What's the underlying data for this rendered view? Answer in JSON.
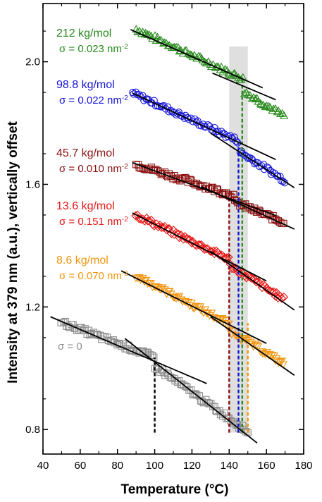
{
  "chart_data": {
    "type": "scatter",
    "xlabel": "Temperature (°C)",
    "ylabel": "Intensity at 379 nm (a.u.), vertically offset",
    "xlim": [
      40,
      180
    ],
    "ylim": [
      0.72,
      2.19
    ],
    "xticks": [
      40,
      60,
      80,
      100,
      120,
      140,
      160,
      180
    ],
    "yticks": [
      0.8,
      1.2,
      1.6,
      2.0
    ],
    "xtick_labels": [
      "40",
      "60",
      "80",
      "100",
      "120",
      "140",
      "160",
      "180"
    ],
    "ytick_labels": [
      "0.8",
      "1.2",
      "1.6",
      "2.0"
    ],
    "shaded_band": {
      "x": [
        140,
        150
      ],
      "color": "#d9d9d9"
    },
    "series": [
      {
        "name": "212 kg/mol",
        "sigma": "σ = 0.023 nm",
        "sigma_exp": "-2",
        "color": "#2a8a1e",
        "marker": "triangle",
        "x_range": [
          90,
          170
        ],
        "segments": [
          [
            [
              89,
              2.108
            ],
            [
              148,
              1.942
            ]
          ],
          [
            [
              132,
              1.962
            ],
            [
              172,
              1.812
            ]
          ]
        ],
        "fits": [
          [
            [
              87,
              2.105
            ],
            [
              158,
              1.915
            ]
          ],
          [
            [
              131,
              1.963
            ],
            [
              165,
              1.876
            ]
          ]
        ],
        "tg": 147
      },
      {
        "name": "98.8 kg/mol",
        "sigma": "σ = 0.022 nm",
        "sigma_exp": "-2",
        "color": "#1414d8",
        "marker": "circle",
        "x_range": [
          88,
          170
        ],
        "segments": [
          [
            [
              88,
              1.898
            ],
            [
              145,
              1.742
            ]
          ],
          [
            [
              135,
              1.748
            ],
            [
              170,
              1.612
            ]
          ]
        ],
        "fits": [
          [
            [
              88,
              1.898
            ],
            [
              165,
              1.681
            ]
          ],
          [
            [
              130,
              1.767
            ],
            [
              175,
              1.589
            ]
          ]
        ],
        "tg": 145
      },
      {
        "name": "45.7 kg/mol",
        "sigma": "σ = 0.010 nm",
        "sigma_exp": "-2",
        "color": "#8b1010",
        "marker": "square",
        "x_range": [
          90,
          170
        ],
        "segments": [
          [
            [
              90,
              1.665
            ],
            [
              143,
              1.562
            ]
          ],
          [
            [
              130,
              1.575
            ],
            [
              170,
              1.474
            ]
          ]
        ],
        "fits": [
          [
            [
              88,
              1.671
            ],
            [
              165,
              1.498
            ]
          ],
          [
            [
              125,
              1.593
            ],
            [
              175,
              1.454
            ]
          ]
        ],
        "tg": 140
      },
      {
        "name": "13.6 kg/mol",
        "sigma": "σ = 0.151 nm",
        "sigma_exp": "-2",
        "color": "#e81414",
        "marker": "diamond",
        "x_range": [
          90,
          170
        ],
        "segments": [
          [
            [
              90,
              1.5
            ],
            [
              140,
              1.356
            ]
          ],
          [
            [
              130,
              1.375
            ],
            [
              170,
              1.222
            ]
          ]
        ],
        "fits": [
          [
            [
              88,
              1.507
            ],
            [
              160,
              1.285
            ]
          ],
          [
            [
              130,
              1.382
            ],
            [
              175,
              1.19
            ]
          ]
        ],
        "tg": 145
      },
      {
        "name": "8.6 kg/mol",
        "sigma": "σ = 0.070 nm",
        "sigma_exp": "-2",
        "color": "#f2950f",
        "marker": "triangle-down",
        "x_range": [
          90,
          170
        ],
        "segments": [
          [
            [
              90,
              1.302
            ],
            [
              140,
              1.145
            ]
          ],
          [
            [
              130,
              1.162
            ],
            [
              170,
              1.012
            ]
          ]
        ],
        "fits": [
          [
            [
              82,
              1.318
            ],
            [
              160,
              1.081
            ]
          ],
          [
            [
              130,
              1.168
            ],
            [
              175,
              0.977
            ]
          ]
        ],
        "tg": 150
      },
      {
        "name": "",
        "sigma": "σ = 0",
        "sigma_exp": "",
        "color": "#8c8c8c",
        "marker": "square",
        "x_range": [
          50,
          150
        ],
        "segments": [
          [
            [
              50,
              1.15
            ],
            [
              100,
              1.035
            ]
          ],
          [
            [
              90,
              1.05
            ],
            [
              150,
              0.793
            ]
          ]
        ],
        "fits": [
          [
            [
              44,
              1.168
            ],
            [
              128,
              0.95
            ]
          ],
          [
            [
              84,
              1.097
            ],
            [
              155,
              0.756
            ]
          ]
        ],
        "tg": 100
      }
    ]
  },
  "tg_lines": [
    {
      "x": 100,
      "y_top": 1.035,
      "color": "#000000"
    },
    {
      "x": 140,
      "y_top": 1.562,
      "color": "#8b1010"
    },
    {
      "x": 145,
      "y_top": 1.742,
      "color": "#1414d8"
    },
    {
      "x": 147,
      "y_top": 1.942,
      "color": "#2a8a1e"
    },
    {
      "x": 150,
      "y_top": 1.147,
      "color": "#f2950f"
    }
  ]
}
